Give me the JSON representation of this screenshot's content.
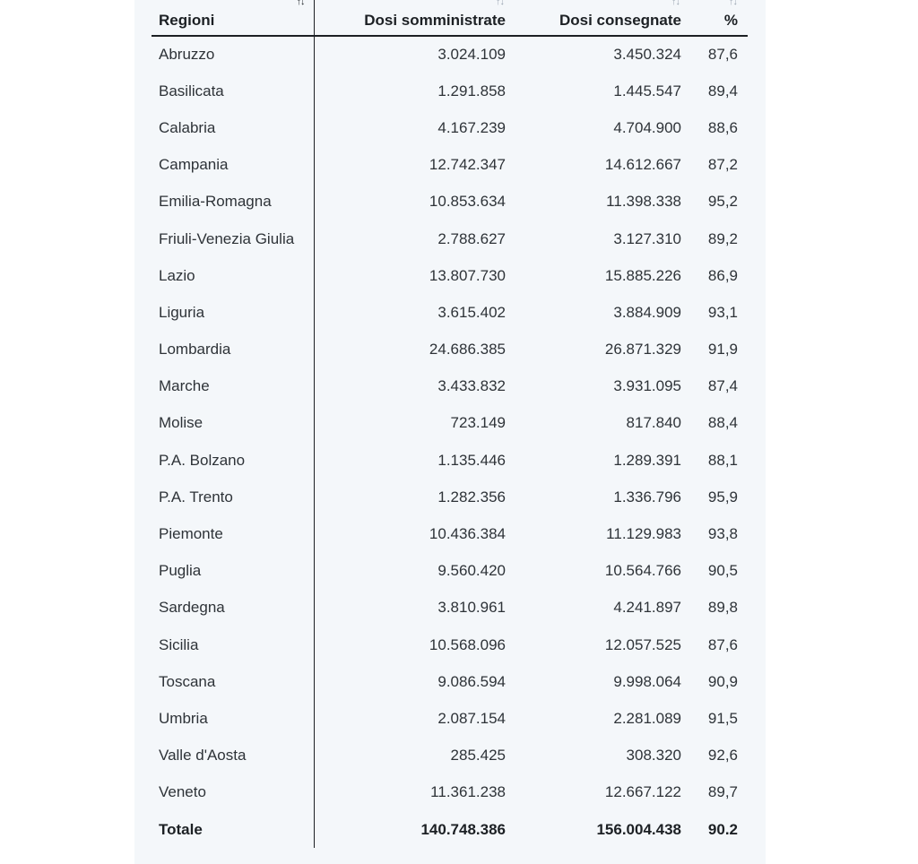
{
  "table": {
    "columns": [
      {
        "label": "Regioni",
        "sort_icon": "↑↓"
      },
      {
        "label": "Dosi somministrate",
        "sort_icon": "↑↓"
      },
      {
        "label": "Dosi consegnate",
        "sort_icon": "↑↓"
      },
      {
        "label": "%",
        "sort_icon": "↑↓"
      }
    ],
    "sort": {
      "column": "Regioni",
      "direction": "ascending"
    },
    "rows": [
      {
        "region": "Abruzzo",
        "administered": "3.024.109",
        "delivered": "3.450.324",
        "percent": "87,6"
      },
      {
        "region": "Basilicata",
        "administered": "1.291.858",
        "delivered": "1.445.547",
        "percent": "89,4"
      },
      {
        "region": "Calabria",
        "administered": "4.167.239",
        "delivered": "4.704.900",
        "percent": "88,6"
      },
      {
        "region": "Campania",
        "administered": "12.742.347",
        "delivered": "14.612.667",
        "percent": "87,2"
      },
      {
        "region": "Emilia-Romagna",
        "administered": "10.853.634",
        "delivered": "11.398.338",
        "percent": "95,2"
      },
      {
        "region": "Friuli-Venezia Giulia",
        "administered": "2.788.627",
        "delivered": "3.127.310",
        "percent": "89,2"
      },
      {
        "region": "Lazio",
        "administered": "13.807.730",
        "delivered": "15.885.226",
        "percent": "86,9"
      },
      {
        "region": "Liguria",
        "administered": "3.615.402",
        "delivered": "3.884.909",
        "percent": "93,1"
      },
      {
        "region": "Lombardia",
        "administered": "24.686.385",
        "delivered": "26.871.329",
        "percent": "91,9"
      },
      {
        "region": "Marche",
        "administered": "3.433.832",
        "delivered": "3.931.095",
        "percent": "87,4"
      },
      {
        "region": "Molise",
        "administered": "723.149",
        "delivered": "817.840",
        "percent": "88,4"
      },
      {
        "region": "P.A. Bolzano",
        "administered": "1.135.446",
        "delivered": "1.289.391",
        "percent": "88,1"
      },
      {
        "region": "P.A. Trento",
        "administered": "1.282.356",
        "delivered": "1.336.796",
        "percent": "95,9"
      },
      {
        "region": "Piemonte",
        "administered": "10.436.384",
        "delivered": "11.129.983",
        "percent": "93,8"
      },
      {
        "region": "Puglia",
        "administered": "9.560.420",
        "delivered": "10.564.766",
        "percent": "90,5"
      },
      {
        "region": "Sardegna",
        "administered": "3.810.961",
        "delivered": "4.241.897",
        "percent": "89,8"
      },
      {
        "region": "Sicilia",
        "administered": "10.568.096",
        "delivered": "12.057.525",
        "percent": "87,6"
      },
      {
        "region": "Toscana",
        "administered": "9.086.594",
        "delivered": "9.998.064",
        "percent": "90,9"
      },
      {
        "region": "Umbria",
        "administered": "2.087.154",
        "delivered": "2.281.089",
        "percent": "91,5"
      },
      {
        "region": "Valle d'Aosta",
        "administered": "285.425",
        "delivered": "308.320",
        "percent": "92,6"
      },
      {
        "region": "Veneto",
        "administered": "11.361.238",
        "delivered": "12.667.122",
        "percent": "89,7"
      }
    ],
    "total": {
      "region": "Totale",
      "administered": "140.748.386",
      "delivered": "156.004.438",
      "percent": "90.2"
    }
  },
  "colors": {
    "panel_background": "#f4f7fa",
    "text": "#1c2024",
    "sort_icon_inactive": "#9aa5b1"
  }
}
